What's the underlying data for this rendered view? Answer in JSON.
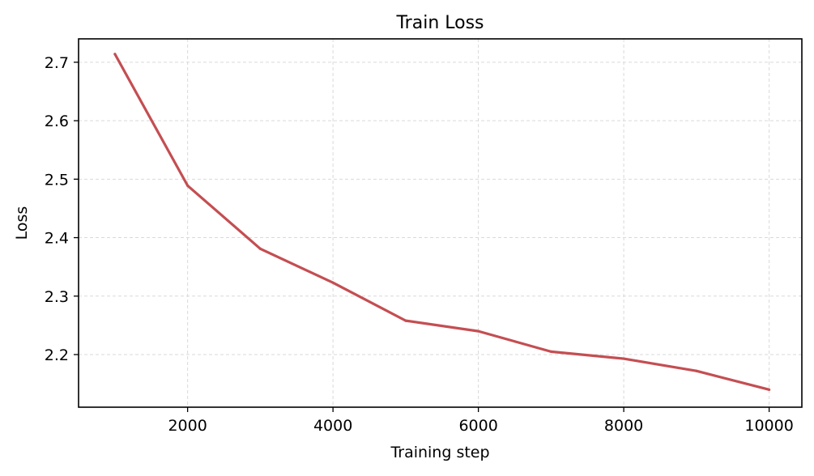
{
  "chart_data": {
    "type": "line",
    "title": "Train Loss",
    "xlabel": "Training step",
    "ylabel": "Loss",
    "xlim": [
      500,
      10450
    ],
    "ylim": [
      2.11,
      2.74
    ],
    "xticks": [
      2000,
      4000,
      6000,
      8000,
      10000
    ],
    "yticks": [
      2.2,
      2.3,
      2.4,
      2.5,
      2.6,
      2.7
    ],
    "grid": true,
    "series": [
      {
        "color": "#c44e52",
        "x": [
          1000,
          2000,
          3000,
          4000,
          5000,
          6000,
          7000,
          8000,
          9000,
          10000
        ],
        "y": [
          2.714,
          2.489,
          2.381,
          2.323,
          2.258,
          2.24,
          2.205,
          2.193,
          2.172,
          2.14
        ]
      }
    ]
  }
}
